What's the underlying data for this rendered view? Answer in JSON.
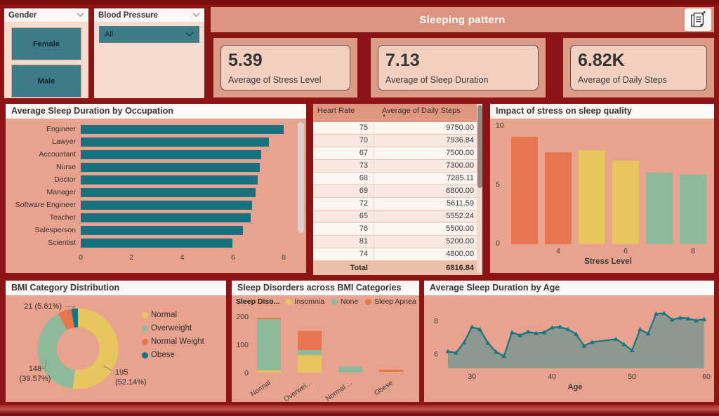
{
  "header": {
    "title": "Sleeping pattern"
  },
  "icons": {
    "sort_desc": "▼",
    "note_icon": "notes-icon"
  },
  "colors": {
    "background": "#8c1414",
    "panel": "#e8a28d",
    "accent_teal": "#17717e",
    "orange": "#e5764e",
    "yellow": "#e7c55f",
    "green": "#8cba9b",
    "teal_dark": "#16747e",
    "area_fill": "#8d998f",
    "line": "#157585",
    "title_bar": "#dd9480",
    "kpi_inner": "#f3cfbf"
  },
  "slicers": {
    "gender": {
      "label": "Gender",
      "options": [
        "Female",
        "Male"
      ]
    },
    "blood_pressure": {
      "label": "Blood Pressure",
      "value": "All"
    }
  },
  "kpis": [
    {
      "value": "5.39",
      "label": "Average of Stress Level"
    },
    {
      "value": "7.13",
      "label": "Average of Sleep Duration"
    },
    {
      "value": "6.82K",
      "label": "Average of Daily Steps"
    }
  ],
  "table": {
    "columns": [
      "Heart Rate",
      "Average of Daily Steps"
    ],
    "rows": [
      [
        "75",
        "9750.00"
      ],
      [
        "70",
        "7936.84"
      ],
      [
        "67",
        "7500.00"
      ],
      [
        "73",
        "7300.00"
      ],
      [
        "68",
        "7285.11"
      ],
      [
        "69",
        "6800.00"
      ],
      [
        "72",
        "5611.59"
      ],
      [
        "65",
        "5552.24"
      ],
      [
        "76",
        "5500.00"
      ],
      [
        "81",
        "5200.00"
      ],
      [
        "74",
        "4800.00"
      ]
    ],
    "total_label": "Total",
    "total_value": "6816.84"
  },
  "chart_data": [
    {
      "id": "occupation",
      "type": "bar",
      "orientation": "horizontal",
      "title": "Average Sleep Duration by Occupation",
      "categories": [
        "Engineer",
        "Lawyer",
        "Accountant",
        "Nurse",
        "Doctor",
        "Manager",
        "Software Engineer",
        "Teacher",
        "Salesperson",
        "Scientist"
      ],
      "values": [
        7.99,
        7.41,
        7.11,
        7.06,
        6.97,
        6.9,
        6.75,
        6.69,
        6.4,
        5.97
      ],
      "xticks": [
        0,
        2,
        4,
        6,
        8
      ],
      "xlim": [
        0,
        8.3
      ],
      "bar_color": "#17717e"
    },
    {
      "id": "stress",
      "type": "bar",
      "title": "Impact of stress on sleep quality",
      "xlabel": "Stress Level",
      "categories": [
        3,
        4,
        5,
        6,
        7,
        8
      ],
      "values": [
        9.1,
        7.8,
        8.0,
        7.1,
        6.1,
        5.9
      ],
      "colors": [
        "#e5764e",
        "#e5764e",
        "#e7c55f",
        "#e7c55f",
        "#8cba9b",
        "#8cba9b"
      ],
      "yticks": [
        0,
        5,
        10
      ],
      "ylim": [
        0,
        10
      ],
      "xticks_shown": [
        4,
        6,
        8
      ]
    },
    {
      "id": "bmi",
      "type": "donut",
      "title": "BMI Category Distribution",
      "slices": [
        {
          "label": "Normal",
          "value": 195,
          "pct": "52.14%",
          "color": "#e7c55f",
          "callout": [
            "195",
            "(52.14%)"
          ]
        },
        {
          "label": "Overweight",
          "value": 148,
          "pct": "39.57%",
          "color": "#8cba9b",
          "callout": [
            "148",
            "(39.57%)"
          ]
        },
        {
          "label": "Normal Weight",
          "value": 21,
          "pct": "5.61%",
          "color": "#e5764e",
          "callout": [
            "21 (5.61%)"
          ]
        },
        {
          "label": "Obese",
          "value": 10,
          "pct": "",
          "color": "#16747e",
          "callout": null
        }
      ],
      "legend": [
        "Normal",
        "Overweight",
        "Normal Weight",
        "Obese"
      ]
    },
    {
      "id": "disorders",
      "type": "stacked-bar",
      "title": "Sleep Disorders across BMI Categories",
      "legend_title": "Sleep Diso...",
      "categories_display": [
        "Normal",
        "Overwei...",
        "Normal ...",
        "Obese"
      ],
      "series": [
        {
          "name": "Insomnia",
          "color": "#e7c55f",
          "values": [
            8,
            62,
            0,
            2
          ]
        },
        {
          "name": "None",
          "color": "#8cba9b",
          "values": [
            182,
            18,
            21,
            0
          ]
        },
        {
          "name": "Sleep Apnea",
          "color": "#e5764e",
          "values": [
            5,
            68,
            0,
            8
          ]
        }
      ],
      "yticks": [
        0,
        100,
        200
      ],
      "ylim": [
        0,
        210
      ]
    },
    {
      "id": "age",
      "type": "area",
      "title": "Average Sleep Duration by Age",
      "xlabel": "Age",
      "x": [
        27,
        28,
        29,
        30,
        31,
        32,
        33,
        34,
        35,
        36,
        37,
        38,
        39,
        40,
        41,
        42,
        43,
        44,
        45,
        48,
        49,
        50,
        51,
        52,
        53,
        54,
        55,
        56,
        57,
        58,
        59
      ],
      "y": [
        6.13,
        6.04,
        6.66,
        7.61,
        7.46,
        6.63,
        6.1,
        5.84,
        7.28,
        7.1,
        7.31,
        7.23,
        7.28,
        7.57,
        7.61,
        7.46,
        7.18,
        6.46,
        6.69,
        6.87,
        6.55,
        6.19,
        7.46,
        7.2,
        8.4,
        8.44,
        8.05,
        8.17,
        8.12,
        8.0,
        8.08
      ],
      "yticks": [
        6,
        8
      ],
      "xticks": [
        30,
        40,
        50,
        60
      ],
      "line_color": "#157585",
      "fill_color": "#8d998f",
      "marker": "triangle"
    }
  ]
}
